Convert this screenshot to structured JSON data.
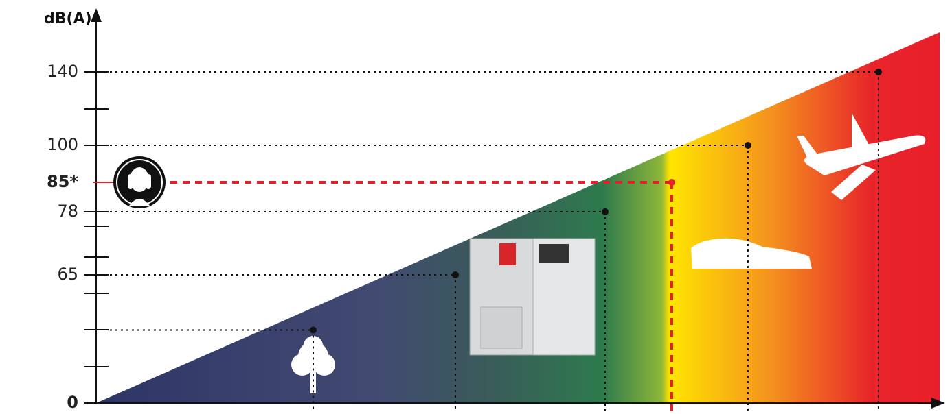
{
  "chart_data": {
    "type": "scatter",
    "y_label": "dB(A)",
    "categories": [
      null,
      null,
      null,
      null,
      null,
      null
    ],
    "values": [
      37,
      65,
      78,
      85,
      100,
      140
    ],
    "point_colors": [
      "#111111",
      "#111111",
      "#111111",
      "#e2222a",
      "#111111",
      "#111111"
    ],
    "ylim": [
      0,
      140
    ],
    "yticks": [
      0,
      65,
      78,
      {
        "value": 85,
        "label": "85*"
      },
      100,
      140
    ],
    "grid": true
  }
}
